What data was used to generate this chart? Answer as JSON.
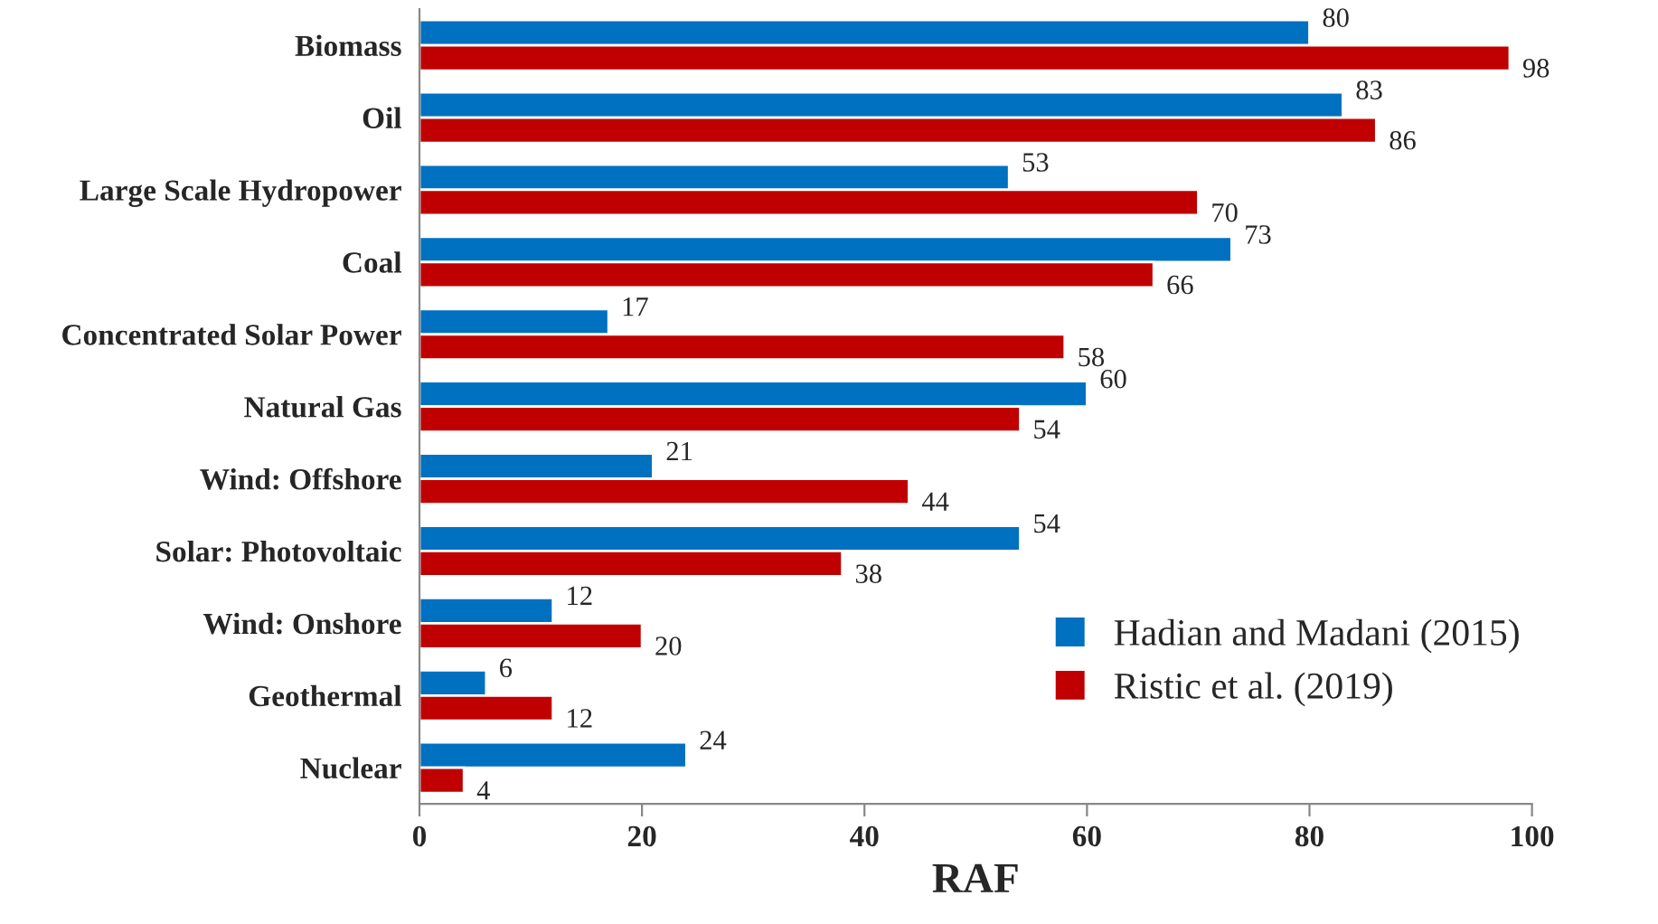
{
  "chart_data": {
    "type": "bar",
    "orientation": "horizontal",
    "xlabel": "RAF",
    "categories": [
      "Biomass",
      "Oil",
      "Large Scale Hydropower",
      "Coal",
      "Concentrated Solar Power",
      "Natural Gas",
      "Wind: Offshore",
      "Solar: Photovoltaic",
      "Wind: Onshore",
      "Geothermal",
      "Nuclear"
    ],
    "series": [
      {
        "name": "Hadian and Madani (2015)",
        "color": "#0070c0",
        "values": [
          80,
          83,
          53,
          73,
          17,
          60,
          21,
          54,
          12,
          6,
          24
        ]
      },
      {
        "name": "Ristic et al. (2019)",
        "color": "#c00000",
        "values": [
          98,
          86,
          70,
          66,
          58,
          54,
          44,
          38,
          20,
          12,
          4
        ]
      }
    ],
    "xlim": [
      0,
      100
    ],
    "xticks": [
      0,
      20,
      40,
      60,
      80,
      100
    ],
    "data_labels": true,
    "grid": false,
    "legend": "bottom right"
  }
}
